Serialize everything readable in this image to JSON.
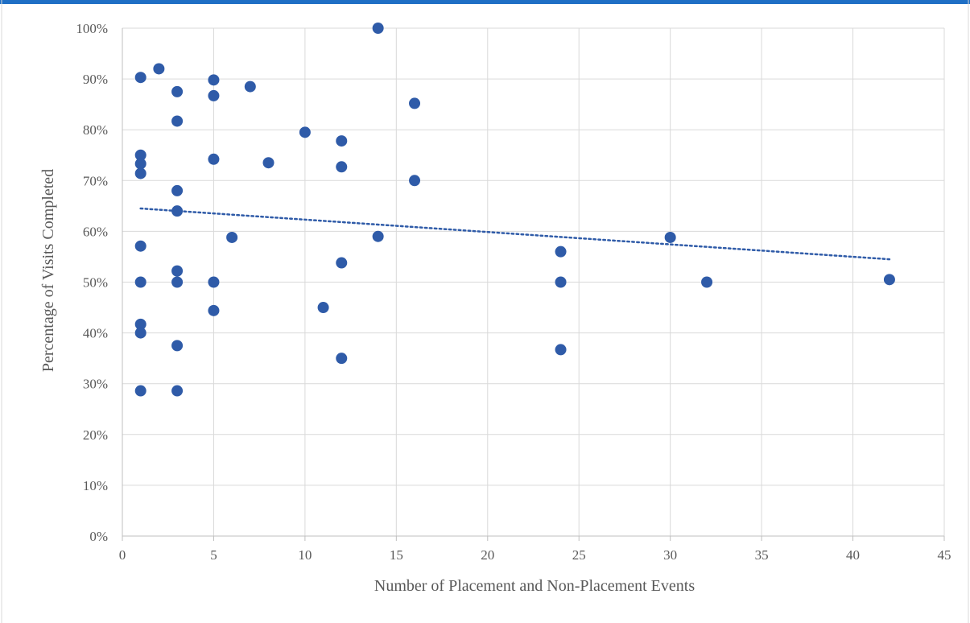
{
  "chart_data": {
    "type": "scatter",
    "xlabel": "Number of Placement and Non-Placement Events",
    "ylabel": "Percentage of Visits Completed",
    "xlim": [
      0,
      45
    ],
    "ylim": [
      0,
      1
    ],
    "x_ticks": [
      0,
      5,
      10,
      15,
      20,
      25,
      30,
      35,
      40,
      45
    ],
    "x_tick_labels": [
      "0",
      "5",
      "10",
      "15",
      "20",
      "25",
      "30",
      "35",
      "40",
      "45"
    ],
    "y_ticks": [
      0,
      0.1,
      0.2,
      0.3,
      0.4,
      0.5,
      0.6,
      0.7,
      0.8,
      0.9,
      1.0
    ],
    "y_tick_labels": [
      "0%",
      "10%",
      "20%",
      "30%",
      "40%",
      "50%",
      "60%",
      "70%",
      "80%",
      "90%",
      "100%"
    ],
    "grid": true,
    "legend": "none",
    "colors": {
      "points": "#2f5ba8",
      "trendline": "#2f5ba8",
      "grid": "#d9d9d9",
      "title_partial": "#1f6fc5"
    },
    "series": [
      {
        "points": [
          [
            1,
            0.903
          ],
          [
            2,
            0.92
          ],
          [
            5,
            0.898
          ],
          [
            7,
            0.885
          ],
          [
            3,
            0.875
          ],
          [
            5,
            0.867
          ],
          [
            14,
            1.0
          ],
          [
            16,
            0.852
          ],
          [
            3,
            0.817
          ],
          [
            10,
            0.795
          ],
          [
            12,
            0.778
          ],
          [
            1,
            0.75
          ],
          [
            1,
            0.733
          ],
          [
            1,
            0.714
          ],
          [
            5,
            0.742
          ],
          [
            8,
            0.735
          ],
          [
            12,
            0.727
          ],
          [
            16,
            0.7
          ],
          [
            3,
            0.68
          ],
          [
            3,
            0.64
          ],
          [
            6,
            0.588
          ],
          [
            14,
            0.59
          ],
          [
            1,
            0.571
          ],
          [
            12,
            0.538
          ],
          [
            3,
            0.522
          ],
          [
            1,
            0.5
          ],
          [
            3,
            0.5
          ],
          [
            5,
            0.5
          ],
          [
            5,
            0.444
          ],
          [
            11,
            0.45
          ],
          [
            1,
            0.417
          ],
          [
            1,
            0.4
          ],
          [
            3,
            0.375
          ],
          [
            12,
            0.35
          ],
          [
            1,
            0.286
          ],
          [
            3,
            0.286
          ],
          [
            24,
            0.56
          ],
          [
            24,
            0.5
          ],
          [
            24,
            0.367
          ],
          [
            30,
            0.588
          ],
          [
            32,
            0.5
          ],
          [
            42,
            0.505
          ]
        ]
      }
    ],
    "trendline": {
      "type": "linear",
      "style": "dotted",
      "x_range": [
        1,
        42
      ],
      "y_values": [
        0.645,
        0.545
      ]
    }
  }
}
